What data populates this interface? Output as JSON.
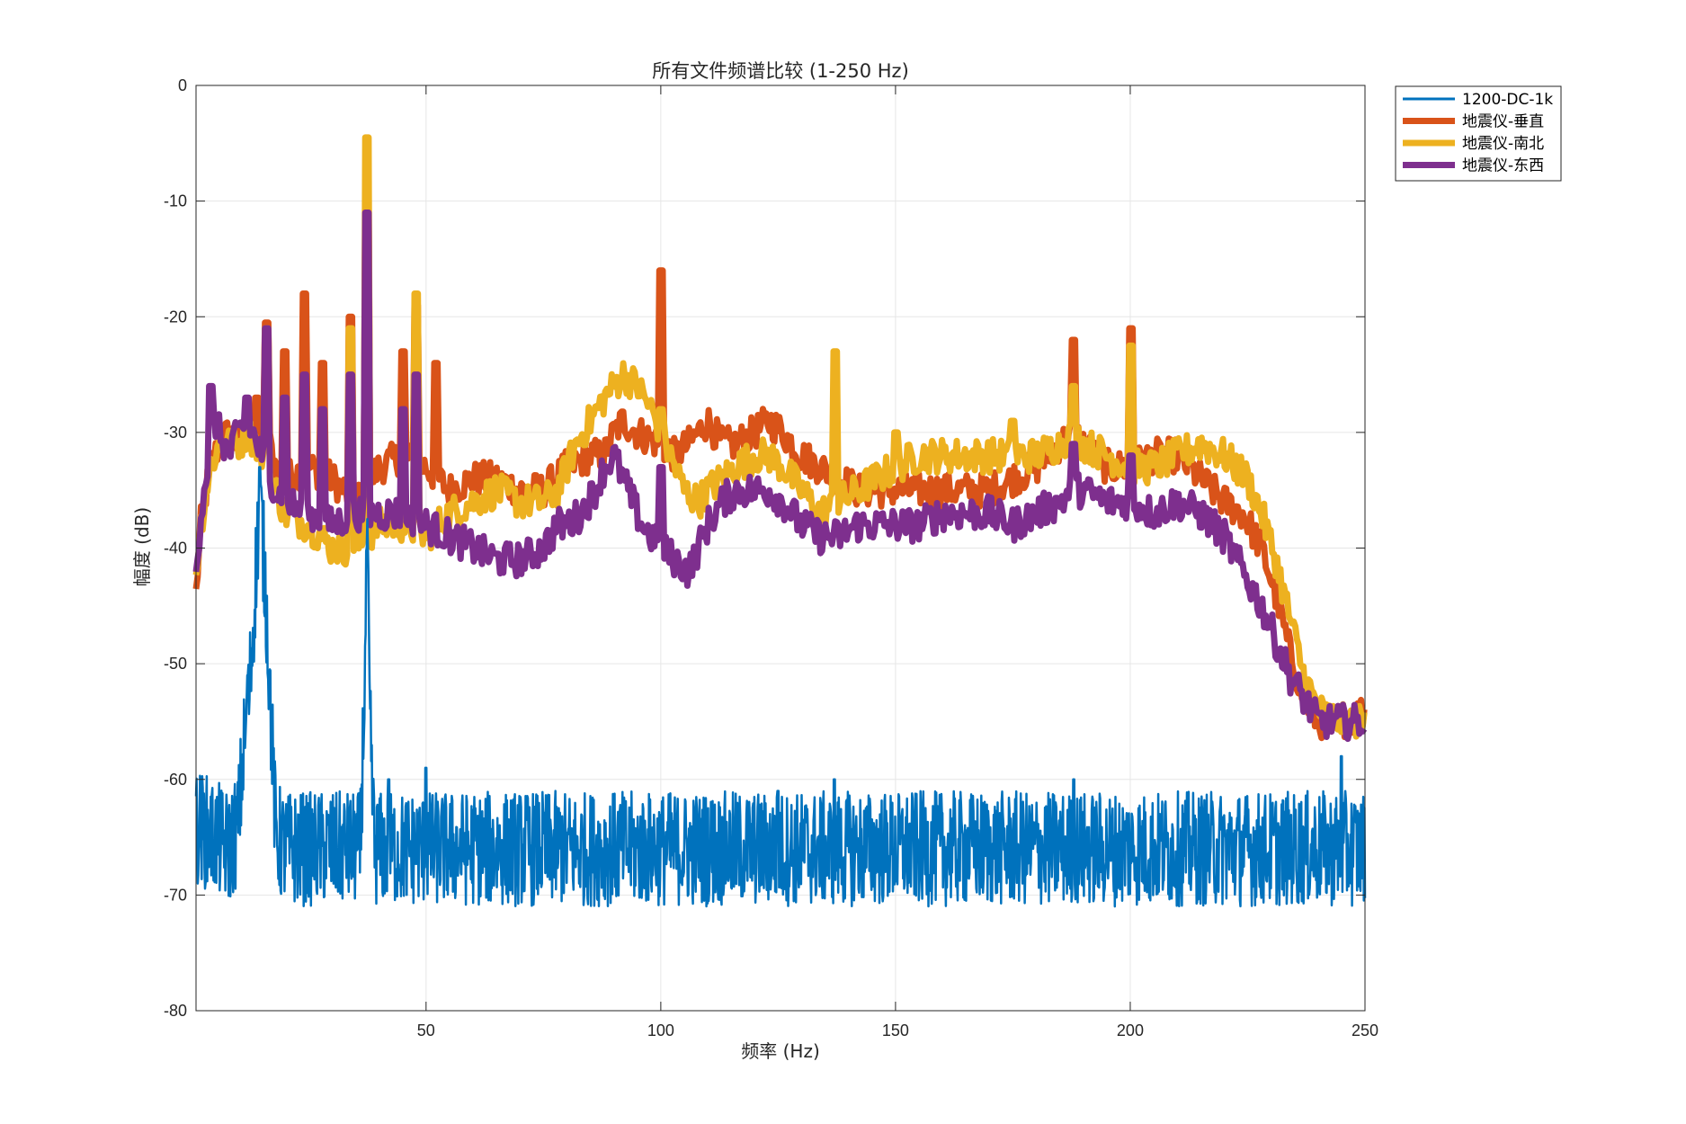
{
  "chart_data": {
    "type": "line",
    "title": "所有文件频谱比较 (1-250 Hz)",
    "xlabel": "频率 (Hz)",
    "ylabel": "幅度 (dB)",
    "xlim": [
      1,
      250
    ],
    "ylim": [
      -80,
      0
    ],
    "xticks": [
      50,
      100,
      150,
      200,
      250
    ],
    "yticks": [
      0,
      -10,
      -20,
      -30,
      -40,
      -50,
      -60,
      -70,
      -80
    ],
    "grid": true,
    "box": true,
    "legend_position": "outside-top-right",
    "series": [
      {
        "name": "1200-DC-1k",
        "color": "#0072BD",
        "points": [
          [
            1,
            -64
          ],
          [
            5,
            -65
          ],
          [
            8,
            -66
          ],
          [
            10,
            -64
          ],
          [
            11,
            -58
          ],
          [
            12,
            -55
          ],
          [
            13,
            -48
          ],
          [
            14,
            -40
          ],
          [
            14.5,
            -36
          ],
          [
            15,
            -38
          ],
          [
            16,
            -45
          ],
          [
            17,
            -55
          ],
          [
            18,
            -65
          ],
          [
            20,
            -66
          ],
          [
            25,
            -66
          ],
          [
            30,
            -66
          ],
          [
            36,
            -66
          ],
          [
            37,
            -50
          ],
          [
            37.5,
            -40
          ],
          [
            38,
            -55
          ],
          [
            39,
            -66
          ],
          [
            45,
            -66
          ],
          [
            50,
            -66
          ],
          [
            60,
            -66
          ],
          [
            70,
            -66
          ],
          [
            80,
            -66
          ],
          [
            90,
            -66
          ],
          [
            100,
            -66
          ],
          [
            110,
            -66
          ],
          [
            120,
            -66
          ],
          [
            130,
            -66
          ],
          [
            140,
            -66
          ],
          [
            150,
            -66
          ],
          [
            160,
            -66
          ],
          [
            170,
            -66
          ],
          [
            180,
            -66
          ],
          [
            190,
            -66
          ],
          [
            200,
            -66
          ],
          [
            210,
            -66
          ],
          [
            220,
            -66
          ],
          [
            230,
            -66
          ],
          [
            240,
            -66
          ],
          [
            250,
            -66
          ]
        ],
        "peaks": [
          [
            12,
            -51
          ],
          [
            14.5,
            -33
          ],
          [
            37.5,
            -40
          ],
          [
            42,
            -60
          ],
          [
            50,
            -59
          ],
          [
            125,
            -61
          ],
          [
            137,
            -60
          ],
          [
            188,
            -60
          ],
          [
            245,
            -58
          ]
        ],
        "noise_spread_db": 5
      },
      {
        "name": "地震仪-垂直",
        "color": "#D95319",
        "points": [
          [
            1,
            -44
          ],
          [
            2,
            -38
          ],
          [
            4,
            -33
          ],
          [
            6,
            -31
          ],
          [
            8,
            -30
          ],
          [
            10,
            -31
          ],
          [
            12,
            -29
          ],
          [
            14,
            -31
          ],
          [
            16,
            -30
          ],
          [
            18,
            -33
          ],
          [
            20,
            -34
          ],
          [
            25,
            -33
          ],
          [
            30,
            -34
          ],
          [
            35,
            -36
          ],
          [
            40,
            -33
          ],
          [
            45,
            -32
          ],
          [
            50,
            -33
          ],
          [
            55,
            -35
          ],
          [
            60,
            -34
          ],
          [
            65,
            -34
          ],
          [
            70,
            -35
          ],
          [
            75,
            -35
          ],
          [
            80,
            -33
          ],
          [
            85,
            -32
          ],
          [
            88,
            -32
          ],
          [
            90,
            -30
          ],
          [
            92,
            -29
          ],
          [
            95,
            -30
          ],
          [
            100,
            -31
          ],
          [
            103,
            -32
          ],
          [
            106,
            -31
          ],
          [
            110,
            -29
          ],
          [
            113,
            -31
          ],
          [
            116,
            -31
          ],
          [
            120,
            -30
          ],
          [
            123,
            -29
          ],
          [
            126,
            -30
          ],
          [
            130,
            -32
          ],
          [
            134,
            -33
          ],
          [
            138,
            -34
          ],
          [
            142,
            -35
          ],
          [
            146,
            -35
          ],
          [
            150,
            -35
          ],
          [
            155,
            -35
          ],
          [
            160,
            -35
          ],
          [
            165,
            -35
          ],
          [
            170,
            -35
          ],
          [
            175,
            -34
          ],
          [
            180,
            -33
          ],
          [
            185,
            -31
          ],
          [
            188,
            -30
          ],
          [
            190,
            -31
          ],
          [
            195,
            -33
          ],
          [
            200,
            -33
          ],
          [
            205,
            -32
          ],
          [
            210,
            -32
          ],
          [
            215,
            -34
          ],
          [
            220,
            -36
          ],
          [
            224,
            -37
          ],
          [
            228,
            -40
          ],
          [
            231,
            -44
          ],
          [
            234,
            -49
          ],
          [
            237,
            -53
          ],
          [
            240,
            -55
          ],
          [
            245,
            -55
          ],
          [
            250,
            -54
          ]
        ],
        "peaks": [
          [
            14,
            -27
          ],
          [
            16,
            -20.5
          ],
          [
            20,
            -23
          ],
          [
            24,
            -18
          ],
          [
            28,
            -24
          ],
          [
            34,
            -20
          ],
          [
            37.5,
            -10
          ],
          [
            45,
            -23
          ],
          [
            48,
            -19
          ],
          [
            52,
            -24
          ],
          [
            100,
            -16
          ],
          [
            188,
            -22
          ],
          [
            200,
            -21
          ]
        ],
        "noise_spread_db": 1.5
      },
      {
        "name": "地震仪-南北",
        "color": "#EDB120",
        "points": [
          [
            1,
            -42
          ],
          [
            2,
            -38
          ],
          [
            4,
            -33
          ],
          [
            6,
            -31
          ],
          [
            8,
            -31
          ],
          [
            10,
            -31
          ],
          [
            12,
            -30
          ],
          [
            14,
            -31
          ],
          [
            16,
            -33
          ],
          [
            18,
            -35
          ],
          [
            20,
            -37
          ],
          [
            25,
            -38
          ],
          [
            30,
            -40
          ],
          [
            35,
            -40
          ],
          [
            40,
            -38
          ],
          [
            45,
            -38
          ],
          [
            50,
            -39
          ],
          [
            55,
            -37
          ],
          [
            60,
            -36
          ],
          [
            65,
            -35
          ],
          [
            70,
            -36
          ],
          [
            75,
            -36
          ],
          [
            78,
            -35
          ],
          [
            80,
            -33
          ],
          [
            82,
            -31
          ],
          [
            85,
            -29
          ],
          [
            88,
            -27
          ],
          [
            90,
            -26
          ],
          [
            92,
            -25
          ],
          [
            95,
            -26
          ],
          [
            98,
            -28
          ],
          [
            100,
            -30
          ],
          [
            102,
            -32
          ],
          [
            105,
            -35
          ],
          [
            108,
            -36
          ],
          [
            110,
            -35
          ],
          [
            113,
            -34
          ],
          [
            116,
            -33
          ],
          [
            120,
            -32
          ],
          [
            123,
            -32
          ],
          [
            126,
            -33
          ],
          [
            130,
            -35
          ],
          [
            134,
            -37
          ],
          [
            138,
            -36
          ],
          [
            142,
            -35
          ],
          [
            146,
            -34
          ],
          [
            150,
            -33
          ],
          [
            155,
            -32
          ],
          [
            160,
            -32
          ],
          [
            165,
            -32
          ],
          [
            170,
            -32
          ],
          [
            175,
            -32
          ],
          [
            180,
            -32
          ],
          [
            185,
            -31
          ],
          [
            188,
            -30
          ],
          [
            190,
            -31
          ],
          [
            195,
            -32
          ],
          [
            200,
            -33
          ],
          [
            205,
            -33
          ],
          [
            210,
            -32
          ],
          [
            215,
            -31
          ],
          [
            220,
            -32
          ],
          [
            225,
            -34
          ],
          [
            228,
            -37
          ],
          [
            231,
            -41
          ],
          [
            234,
            -46
          ],
          [
            237,
            -51
          ],
          [
            240,
            -54
          ],
          [
            245,
            -55
          ],
          [
            250,
            -55
          ]
        ],
        "peaks": [
          [
            16,
            -21
          ],
          [
            34,
            -21
          ],
          [
            37.5,
            -4.5
          ],
          [
            48,
            -18
          ],
          [
            100,
            -28
          ],
          [
            137,
            -23
          ],
          [
            150,
            -30
          ],
          [
            175,
            -29
          ],
          [
            188,
            -26
          ],
          [
            200,
            -22.5
          ]
        ],
        "noise_spread_db": 1.5
      },
      {
        "name": "地震仪-东西",
        "color": "#7E2F8E",
        "points": [
          [
            1,
            -42
          ],
          [
            2,
            -37
          ],
          [
            3,
            -34
          ],
          [
            4,
            -32
          ],
          [
            5,
            -29
          ],
          [
            6,
            -30
          ],
          [
            8,
            -32
          ],
          [
            10,
            -30
          ],
          [
            12,
            -29
          ],
          [
            14,
            -31
          ],
          [
            16,
            -33
          ],
          [
            18,
            -35
          ],
          [
            20,
            -36
          ],
          [
            25,
            -37
          ],
          [
            30,
            -38
          ],
          [
            35,
            -37
          ],
          [
            40,
            -37
          ],
          [
            45,
            -37
          ],
          [
            50,
            -38
          ],
          [
            55,
            -39
          ],
          [
            60,
            -40
          ],
          [
            65,
            -41
          ],
          [
            70,
            -41
          ],
          [
            75,
            -40
          ],
          [
            78,
            -38
          ],
          [
            80,
            -38
          ],
          [
            83,
            -37
          ],
          [
            86,
            -35
          ],
          [
            88,
            -33
          ],
          [
            90,
            -32
          ],
          [
            92,
            -34
          ],
          [
            94,
            -36
          ],
          [
            96,
            -38
          ],
          [
            100,
            -40
          ],
          [
            103,
            -41
          ],
          [
            106,
            -42
          ],
          [
            108,
            -40
          ],
          [
            110,
            -38
          ],
          [
            113,
            -36
          ],
          [
            116,
            -35
          ],
          [
            120,
            -35
          ],
          [
            123,
            -35
          ],
          [
            126,
            -36
          ],
          [
            130,
            -38
          ],
          [
            134,
            -39
          ],
          [
            138,
            -39
          ],
          [
            142,
            -38
          ],
          [
            146,
            -38
          ],
          [
            150,
            -38
          ],
          [
            155,
            -38
          ],
          [
            160,
            -37
          ],
          [
            165,
            -37
          ],
          [
            170,
            -37
          ],
          [
            175,
            -38
          ],
          [
            180,
            -37
          ],
          [
            185,
            -36
          ],
          [
            188,
            -35
          ],
          [
            190,
            -35
          ],
          [
            195,
            -36
          ],
          [
            200,
            -36
          ],
          [
            205,
            -37
          ],
          [
            210,
            -36
          ],
          [
            215,
            -37
          ],
          [
            220,
            -39
          ],
          [
            224,
            -42
          ],
          [
            228,
            -45
          ],
          [
            231,
            -48
          ],
          [
            234,
            -51
          ],
          [
            237,
            -53
          ],
          [
            240,
            -55
          ],
          [
            245,
            -55
          ],
          [
            250,
            -55
          ]
        ],
        "peaks": [
          [
            4,
            -26
          ],
          [
            12,
            -27
          ],
          [
            16,
            -21
          ],
          [
            20,
            -27
          ],
          [
            24,
            -25
          ],
          [
            28,
            -28
          ],
          [
            34,
            -25
          ],
          [
            37.5,
            -11
          ],
          [
            45,
            -28
          ],
          [
            48,
            -25
          ],
          [
            100,
            -33
          ],
          [
            188,
            -31
          ],
          [
            200,
            -32
          ]
        ],
        "noise_spread_db": 1.5
      }
    ]
  }
}
